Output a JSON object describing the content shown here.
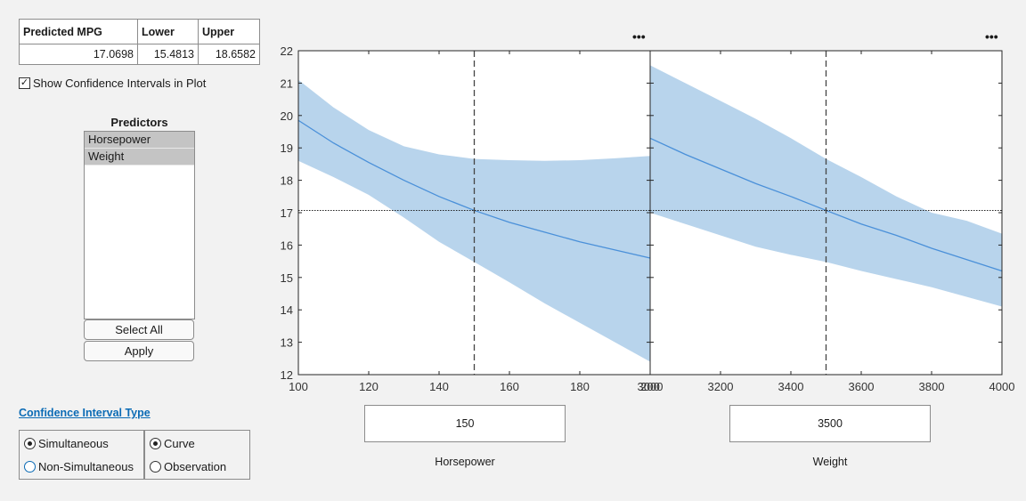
{
  "table": {
    "headers": [
      "Predicted MPG",
      "Lower",
      "Upper"
    ],
    "values": [
      "17.0698",
      "15.4813",
      "18.6582"
    ]
  },
  "show_ci": {
    "label": "Show Confidence Intervals in Plot",
    "checked": true
  },
  "predictors": {
    "title": "Predictors",
    "items": [
      "Horsepower",
      "Weight"
    ],
    "select_all": "Select All",
    "apply": "Apply"
  },
  "ci_type": {
    "title": "Confidence Interval Type",
    "group1": {
      "options": [
        "Simultaneous",
        "Non-Simultaneous"
      ],
      "selected": "Simultaneous"
    },
    "group2": {
      "options": [
        "Curve",
        "Observation"
      ],
      "selected": "Curve"
    }
  },
  "menu_icon": "ellipsis-icon",
  "ellipsis_text": "•••",
  "colors": {
    "line": "#4a90d9",
    "band": "#b8d4ec",
    "accent": "#0b6bb5"
  },
  "chart_data": [
    {
      "type": "line",
      "xlabel": "Horsepower",
      "xlim": [
        100,
        200
      ],
      "ylim": [
        12,
        22
      ],
      "xticks": [
        100,
        120,
        140,
        160,
        180,
        200
      ],
      "yticks": [
        12,
        13,
        14,
        15,
        16,
        17,
        18,
        19,
        20,
        21,
        22
      ],
      "x": [
        100,
        110,
        120,
        130,
        140,
        150,
        160,
        170,
        180,
        190,
        200
      ],
      "y": [
        19.85,
        19.15,
        18.55,
        18.0,
        17.5,
        17.07,
        16.7,
        16.4,
        16.1,
        15.85,
        15.6
      ],
      "lower": [
        18.6,
        18.1,
        17.55,
        16.85,
        16.1,
        15.48,
        14.85,
        14.2,
        13.6,
        13.0,
        12.4
      ],
      "upper": [
        21.1,
        20.25,
        19.55,
        19.05,
        18.8,
        18.66,
        18.62,
        18.6,
        18.62,
        18.68,
        18.75
      ],
      "current_x": 150,
      "current_y": 17.0698
    },
    {
      "type": "line",
      "xlabel": "Weight",
      "xlim": [
        3000,
        4000
      ],
      "ylim": [
        12,
        22
      ],
      "xticks": [
        3000,
        3200,
        3400,
        3600,
        3800,
        4000
      ],
      "yticks": [
        12,
        13,
        14,
        15,
        16,
        17,
        18,
        19,
        20,
        21,
        22
      ],
      "x": [
        3000,
        3100,
        3200,
        3300,
        3400,
        3500,
        3600,
        3700,
        3800,
        3900,
        4000
      ],
      "y": [
        19.3,
        18.8,
        18.35,
        17.9,
        17.5,
        17.07,
        16.65,
        16.3,
        15.9,
        15.55,
        15.2
      ],
      "lower": [
        17.0,
        16.65,
        16.3,
        15.95,
        15.7,
        15.48,
        15.2,
        14.95,
        14.7,
        14.4,
        14.1
      ],
      "upper": [
        21.55,
        21.0,
        20.45,
        19.9,
        19.3,
        18.66,
        18.1,
        17.5,
        17.0,
        16.75,
        16.35
      ],
      "current_x": 3500,
      "current_y": 17.0698
    }
  ],
  "inputs": [
    "150",
    "3500"
  ]
}
